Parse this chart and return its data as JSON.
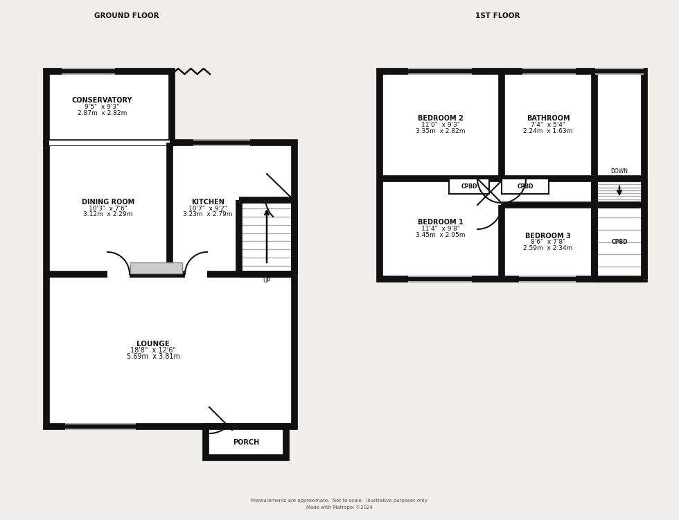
{
  "bg_color": "#f0eeea",
  "wall_color": "#111111",
  "floor_color": "#ffffff",
  "stair_color": "#aaaaaa",
  "cpbd_color": "#e8e8e8",
  "ground_floor_label": "GROUND FLOOR",
  "first_floor_label": "1ST FLOOR",
  "footer_text1": "Measurements are approximate.  Not to scale.  Illustrative purposes only.",
  "footer_text2": "Made with Metropix ©2024",
  "rooms": {
    "conservatory": {
      "label": "CONSERVATORY",
      "dim1": "9'5\"  x 9'3\"",
      "dim2": "2.87m  x 2.82m"
    },
    "dining_room": {
      "label": "DINING ROOM",
      "dim1": "10'3\"  x 7'6\"",
      "dim2": "3.12m  x 2.29m"
    },
    "kitchen": {
      "label": "KITCHEN",
      "dim1": "10'7\"  x 9'2\"",
      "dim2": "3.23m  x 2.79m"
    },
    "lounge": {
      "label": "LOUNGE",
      "dim1": "18'8\"  x 12'6\"",
      "dim2": "5.69m  x 3.81m"
    },
    "porch": {
      "label": "PORCH"
    },
    "bathroom": {
      "label": "BATHROOM",
      "dim1": "7'4\"  x 5'4\"",
      "dim2": "2.24m  x 1.63m"
    },
    "bedroom1": {
      "label": "BEDROOM 1",
      "dim1": "11'4\"  x 9'8\"",
      "dim2": "3.45m  x 2.95m"
    },
    "bedroom2": {
      "label": "BEDROOM 2",
      "dim1": "11'0\"  x 9'3\"",
      "dim2": "3.35m  x 2.82m"
    },
    "bedroom3": {
      "label": "BEDROOM 3",
      "dim1": "8'6\"  x 7'8\"",
      "dim2": "2.59m  x 2.34m"
    }
  }
}
